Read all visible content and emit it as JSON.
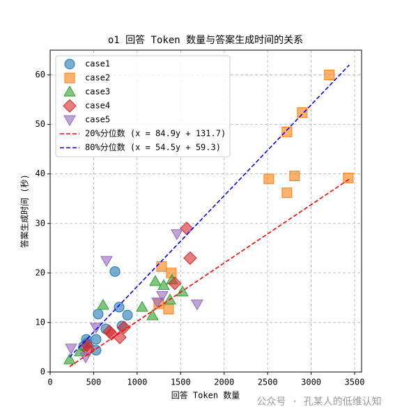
{
  "chart_data": {
    "type": "scatter",
    "title": "o1 回答 Token 数量与答案生成时间的关系",
    "x_label": "回答 Token 数量",
    "y_label": "答案生成时间 (秒)",
    "xlim": [
      0,
      3580
    ],
    "ylim": [
      0,
      65
    ],
    "xticks": [
      0,
      500,
      1000,
      1500,
      2000,
      2500,
      3000,
      3500
    ],
    "yticks": [
      0,
      10,
      20,
      30,
      40,
      50,
      60
    ],
    "grid": true,
    "legend": "upper-left",
    "watermark": "公众号 · 孔某人的低维认知",
    "series": [
      {
        "name": "case1",
        "color": "#1f77b4",
        "marker": "circle",
        "x": [
          416,
          424,
          528,
          528,
          552,
          640,
          745,
          793,
          825,
          889,
          384
        ],
        "values": [
          6.6,
          5.8,
          6.6,
          4.4,
          11.7,
          8.7,
          20.3,
          13.1,
          9.3,
          11.5,
          5.2
        ]
      },
      {
        "name": "case2",
        "color": "#ff7f0e",
        "marker": "square",
        "x": [
          1249,
          1281,
          1361,
          1393,
          2514,
          2722,
          2722,
          2810,
          2898,
          3210,
          3427
        ],
        "values": [
          13.8,
          21.3,
          12.7,
          20.0,
          39.0,
          36.2,
          48.5,
          39.6,
          52.4,
          60.0,
          39.2
        ]
      },
      {
        "name": "case3",
        "color": "#2ca02c",
        "marker": "triangle-up",
        "x": [
          224,
          344,
          608,
          1057,
          1177,
          1209,
          1305,
          1377,
          1401,
          1521
        ],
        "values": [
          2.5,
          4.1,
          13.5,
          13.1,
          11.4,
          18.3,
          17.5,
          14.6,
          18.6,
          16.2
        ]
      },
      {
        "name": "case4",
        "color": "#d62728",
        "marker": "diamond",
        "x": [
          424,
          440,
          681,
          705,
          801,
          849,
          1433,
          1569,
          1609
        ],
        "values": [
          5.4,
          4.5,
          8.2,
          7.7,
          7.0,
          9.0,
          17.9,
          29.0,
          23.0
        ]
      },
      {
        "name": "case5",
        "color": "#9467bd",
        "marker": "triangle-down",
        "x": [
          240,
          408,
          528,
          648,
          1233,
          1289,
          1457,
          1689
        ],
        "values": [
          4.8,
          3.0,
          9.0,
          22.5,
          14.1,
          15.4,
          27.9,
          13.7
        ]
      },
      {
        "name": "20%分位数 (x = 84.9y + 131.7)",
        "color": "#ff0000",
        "marker": "line",
        "x": [
          224,
          3451
        ],
        "values": [
          1.1,
          39.1
        ]
      },
      {
        "name": "80%分位数 (x = 54.5y + 59.3)",
        "color": "#0000ff",
        "marker": "line",
        "x": [
          223,
          3438
        ],
        "values": [
          3,
          62
        ]
      }
    ]
  }
}
